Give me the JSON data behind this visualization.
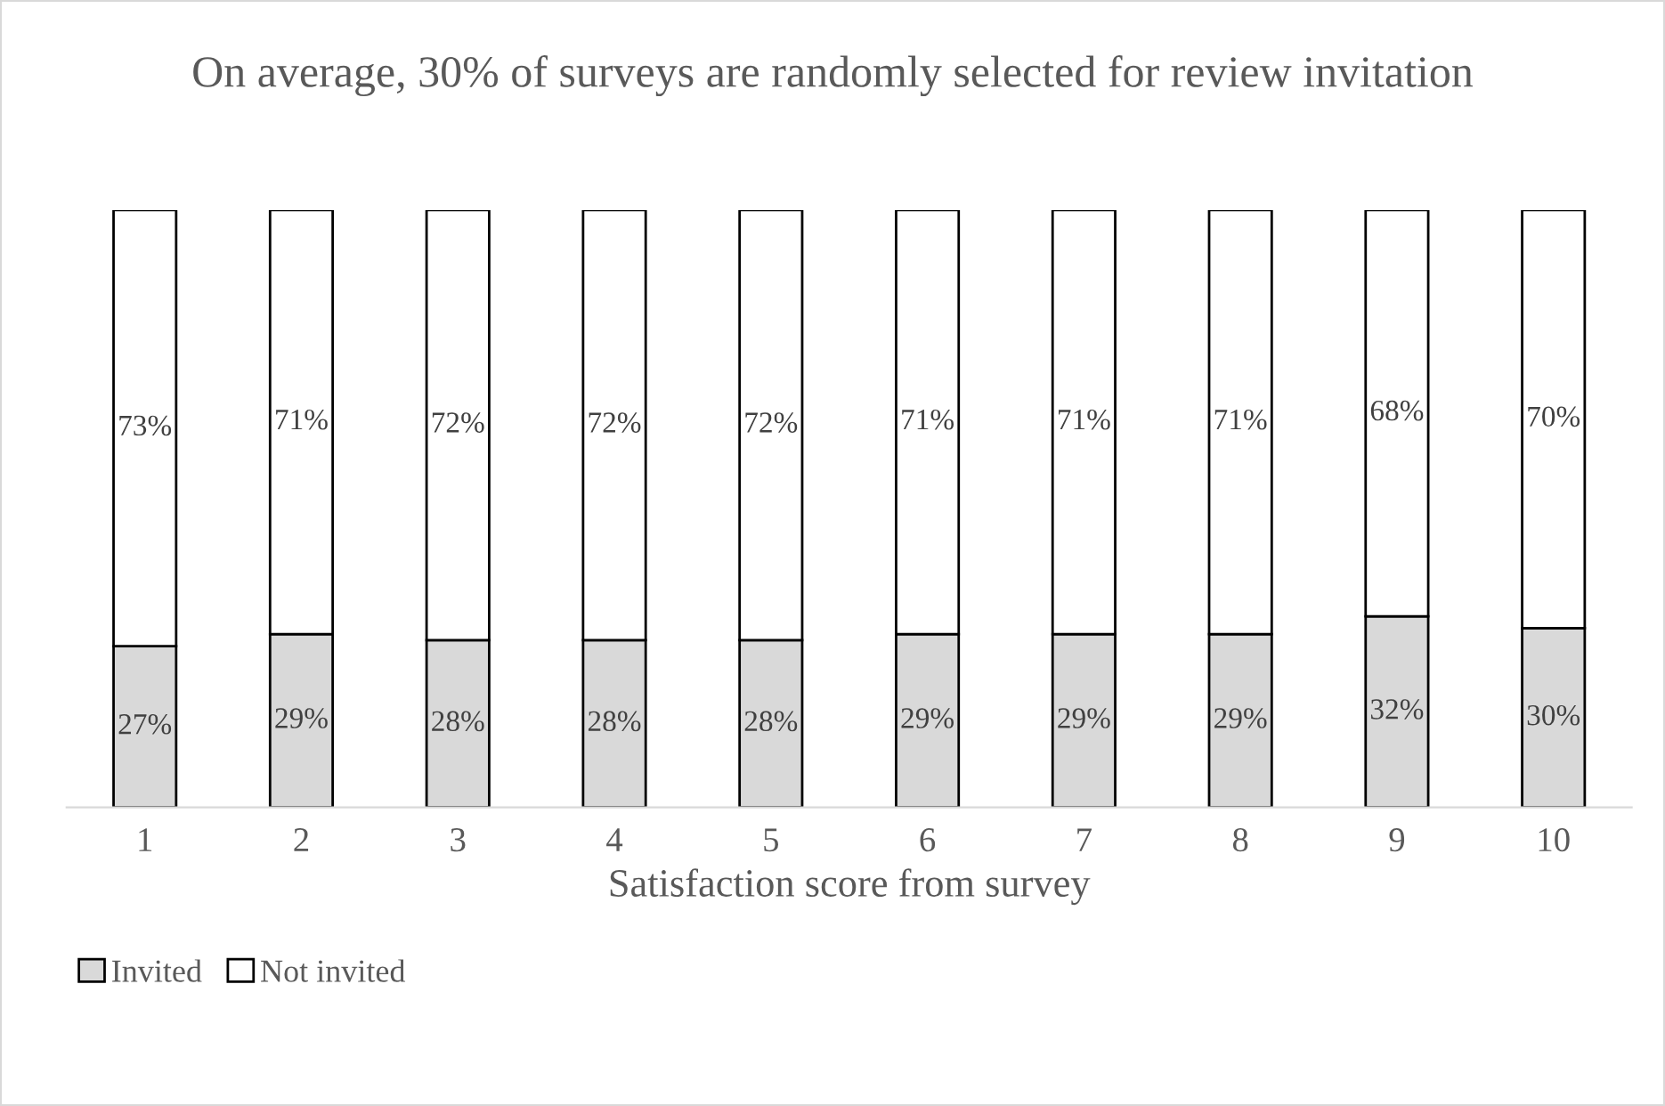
{
  "chart_data": {
    "type": "bar",
    "title": "On average, 30% of surveys are randomly selected for review invitation",
    "xlabel": "Satisfaction score from survey",
    "categories": [
      "1",
      "2",
      "3",
      "4",
      "5",
      "6",
      "7",
      "8",
      "9",
      "10"
    ],
    "stacked": true,
    "series": [
      {
        "name": "Invited",
        "color": "#d9d9d9",
        "values": [
          27,
          29,
          28,
          28,
          28,
          29,
          29,
          29,
          32,
          30
        ],
        "value_labels": [
          "27%",
          "29%",
          "28%",
          "28%",
          "28%",
          "29%",
          "29%",
          "29%",
          "32%",
          "30%"
        ]
      },
      {
        "name": "Not invited",
        "color": "#ffffff",
        "values": [
          73,
          71,
          72,
          72,
          72,
          71,
          71,
          71,
          68,
          70
        ],
        "value_labels": [
          "73%",
          "71%",
          "72%",
          "72%",
          "72%",
          "71%",
          "71%",
          "71%",
          "68%",
          "70%"
        ]
      }
    ],
    "legend": "bottom left",
    "grid": false
  }
}
